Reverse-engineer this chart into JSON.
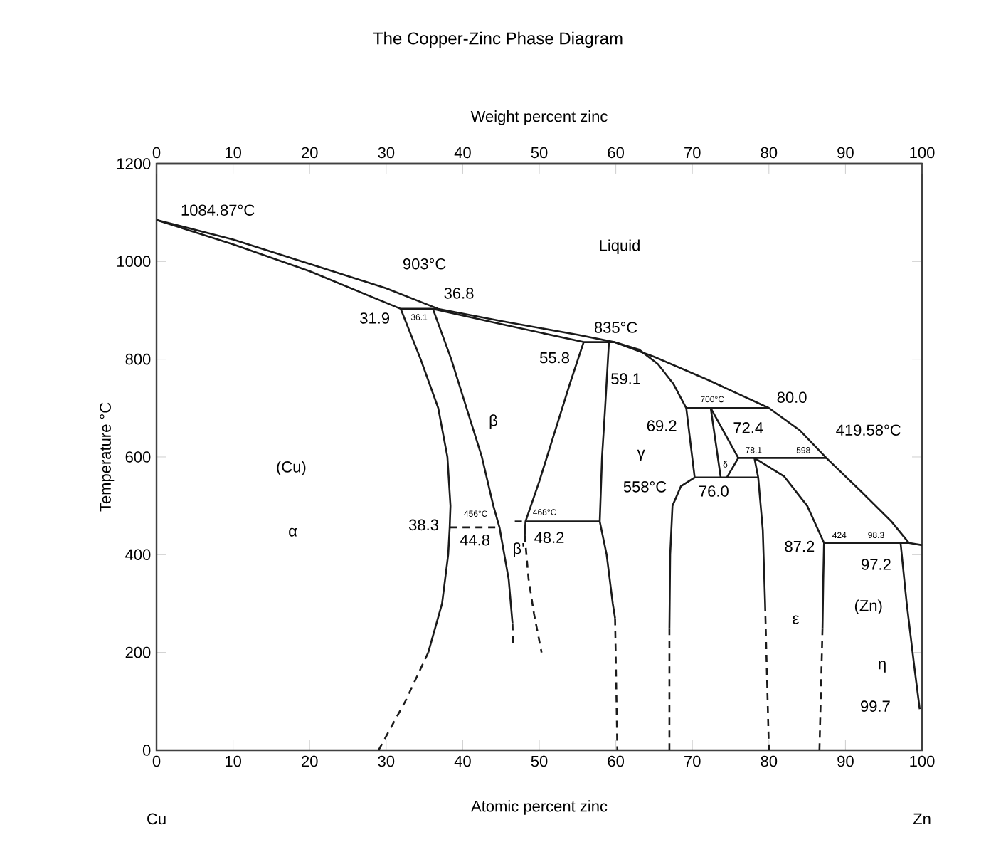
{
  "chart_data": {
    "type": "line",
    "title": "The Copper-Zinc Phase Diagram",
    "xlabel": "Atomic percent zinc",
    "x2label": "Weight percent zinc",
    "ylabel": "Temperature °C",
    "xlim": [
      0,
      100
    ],
    "xticks": [
      0,
      10,
      20,
      30,
      40,
      50,
      60,
      70,
      80,
      90,
      100
    ],
    "x2lim": [
      0,
      100
    ],
    "x2ticks": [
      0,
      10,
      20,
      30,
      40,
      50,
      60,
      70,
      80,
      90,
      100
    ],
    "ylim": [
      0,
      1200
    ],
    "yticks": [
      0,
      200,
      400,
      600,
      800,
      1000,
      1200
    ],
    "series": [
      {
        "color": "#1a1a1a",
        "line_style": "solid",
        "x": [
          0,
          10,
          20,
          30,
          36.8,
          45,
          55,
          59.8,
          65,
          72,
          80,
          84,
          87.5,
          92,
          96,
          98.3,
          100
        ],
        "values": [
          1084.87,
          1045,
          995,
          945,
          903,
          878,
          850,
          835,
          805,
          758,
          700,
          655,
          598,
          530,
          468,
          424,
          419.58
        ]
      },
      {
        "color": "#1a1a1a",
        "line_style": "solid",
        "x": [
          0,
          10,
          20,
          31.9,
          36.8
        ],
        "values": [
          1084.87,
          1035,
          980,
          903,
          903
        ]
      },
      {
        "color": "#1a1a1a",
        "line_style": "solid",
        "x": [
          31.9,
          34.5,
          36.8,
          38,
          38.4,
          38.3,
          38.1,
          37.3,
          35.5
        ],
        "values": [
          903,
          800,
          700,
          600,
          500,
          456,
          400,
          300,
          200
        ]
      },
      {
        "color": "#1a1a1a",
        "line_style": "dashed",
        "x": [
          35.5,
          32.5,
          29
        ],
        "values": [
          200,
          100,
          0
        ]
      },
      {
        "color": "#1a1a1a",
        "line_style": "solid",
        "x": [
          36.1,
          38.5,
          40.5,
          42.5,
          44,
          44.8,
          46,
          46.5
        ],
        "values": [
          903,
          800,
          700,
          600,
          500,
          456,
          350,
          260
        ]
      },
      {
        "color": "#1a1a1a",
        "line_style": "dashed",
        "x": [
          46.5,
          46.6
        ],
        "values": [
          260,
          210
        ]
      },
      {
        "color": "#1a1a1a",
        "line_style": "solid",
        "x": [
          36.1,
          45,
          55.8,
          59.8,
          63,
          65.5,
          67.5,
          69.2,
          80
        ],
        "values": [
          903,
          872,
          835,
          835,
          820,
          790,
          750,
          700,
          700
        ]
      },
      {
        "color": "#1a1a1a",
        "line_style": "solid",
        "x": [
          55.8,
          54,
          52,
          50,
          48.2,
          48.1
        ],
        "values": [
          835,
          750,
          650,
          550,
          468,
          440
        ]
      },
      {
        "color": "#1a1a1a",
        "line_style": "dashed",
        "x": [
          48.1,
          48.6,
          49.3,
          50.3
        ],
        "values": [
          440,
          350,
          280,
          200
        ]
      },
      {
        "color": "#1a1a1a",
        "line_style": "dashed",
        "x": [
          38.3,
          44.8
        ],
        "values": [
          456,
          456
        ]
      },
      {
        "color": "#1a1a1a",
        "line_style": "dashed",
        "x": [
          46.8,
          48.2
        ],
        "values": [
          468,
          468
        ]
      },
      {
        "color": "#1a1a1a",
        "line_style": "solid",
        "x": [
          48.2,
          57.9
        ],
        "values": [
          468,
          468
        ]
      },
      {
        "color": "#1a1a1a",
        "line_style": "solid",
        "x": [
          59.1,
          58.6,
          58.2,
          57.9,
          58.8,
          59.6,
          59.9
        ],
        "values": [
          835,
          700,
          600,
          468,
          400,
          300,
          270
        ]
      },
      {
        "color": "#1a1a1a",
        "line_style": "dashed",
        "x": [
          59.9,
          60.2
        ],
        "values": [
          270,
          0
        ]
      },
      {
        "color": "#1a1a1a",
        "line_style": "solid",
        "x": [
          69.2,
          70.3,
          78.6
        ],
        "values": [
          700,
          558,
          558
        ]
      },
      {
        "color": "#1a1a1a",
        "line_style": "solid",
        "x": [
          70.3,
          68.5,
          67.4,
          67.1,
          67
        ],
        "values": [
          558,
          540,
          500,
          400,
          250
        ]
      },
      {
        "color": "#1a1a1a",
        "line_style": "dashed",
        "x": [
          67,
          67
        ],
        "values": [
          250,
          0
        ]
      },
      {
        "color": "#1a1a1a",
        "line_style": "solid",
        "x": [
          72.4,
          73.7
        ],
        "values": [
          700,
          558
        ]
      },
      {
        "color": "#1a1a1a",
        "line_style": "solid",
        "x": [
          72.4,
          76,
          74.5
        ],
        "values": [
          700,
          598,
          558
        ]
      },
      {
        "color": "#1a1a1a",
        "line_style": "solid",
        "x": [
          76,
          87.5
        ],
        "values": [
          598,
          598
        ]
      },
      {
        "color": "#1a1a1a",
        "line_style": "solid",
        "x": [
          78.1,
          78.6,
          79.2,
          79.5
        ],
        "values": [
          598,
          558,
          450,
          300
        ]
      },
      {
        "color": "#1a1a1a",
        "line_style": "dashed",
        "x": [
          79.5,
          80
        ],
        "values": [
          300,
          0
        ]
      },
      {
        "color": "#1a1a1a",
        "line_style": "solid",
        "x": [
          78.1,
          82,
          85,
          87.2,
          87.1,
          87
        ],
        "values": [
          598,
          560,
          500,
          424,
          350,
          250
        ]
      },
      {
        "color": "#1a1a1a",
        "line_style": "dashed",
        "x": [
          87,
          86.6
        ],
        "values": [
          250,
          0
        ]
      },
      {
        "color": "#1a1a1a",
        "line_style": "solid",
        "x": [
          87.2,
          98.3
        ],
        "values": [
          424,
          424
        ]
      },
      {
        "color": "#1a1a1a",
        "line_style": "solid",
        "x": [
          97.2,
          98,
          99,
          99.7
        ],
        "values": [
          424,
          300,
          170,
          84
        ]
      }
    ],
    "annotations": [
      "1084.87°C",
      "903°C",
      "36.8",
      "31.9",
      "36.1",
      "Liquid",
      "835°C",
      "55.8",
      "59.1",
      "β",
      "700°C",
      "80.0",
      "69.2",
      "72.4",
      "419.58°C",
      "78.1",
      "598",
      "γ",
      "δ",
      "(Cu)",
      "α",
      "558°C",
      "76.0",
      "38.3",
      "456°C",
      "44.8",
      "468°C",
      "48.2",
      "β'",
      "87.2",
      "424",
      "98.3",
      "97.2",
      "(Zn)",
      "ε",
      "η",
      "99.7",
      "Cu",
      "Zn"
    ]
  }
}
